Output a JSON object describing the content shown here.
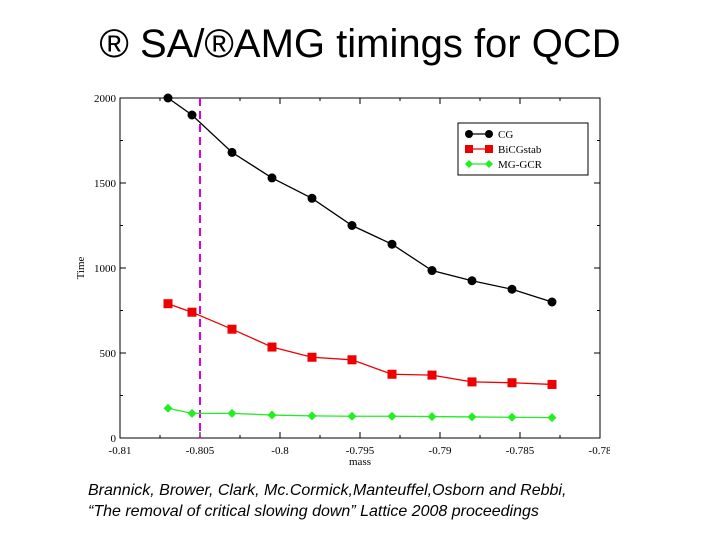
{
  "slide": {
    "title": "® SA/®AMG timings  for QCD"
  },
  "caption": {
    "line1": "Brannick, Brower, Clark, Mc.Cormick,Manteuffel,Osborn and Rebbi,",
    "line2": "“The removal of critical slowing down” Lattice 2008 proceedings"
  },
  "chart_data": {
    "type": "line",
    "title": "",
    "xlabel": "mass",
    "ylabel": "Time",
    "xlim": [
      -0.81,
      -0.78
    ],
    "ylim": [
      0,
      2000
    ],
    "xticks": [
      -0.81,
      -0.805,
      -0.8,
      -0.795,
      -0.79,
      -0.785,
      -0.78
    ],
    "xtick_labels": [
      "-0.81",
      "-0.805",
      "-0.8",
      "-0.795",
      "-0.79",
      "-0.785",
      "-0.78"
    ],
    "yticks": [
      0,
      500,
      1000,
      1500,
      2000
    ],
    "ytick_labels": [
      "0",
      "500",
      "1000",
      "1500",
      "2000"
    ],
    "grid": false,
    "legend_position": "top-right",
    "vertical_line": {
      "x": -0.805,
      "color": "#dd00dd",
      "style": "dashed"
    },
    "x": [
      -0.807,
      -0.8055,
      -0.803,
      -0.8005,
      -0.798,
      -0.7955,
      -0.793,
      -0.7905,
      -0.788,
      -0.7855,
      -0.783
    ],
    "series": [
      {
        "name": "CG",
        "color": "#000000",
        "marker": "circle",
        "values": [
          2000,
          1900,
          1680,
          1530,
          1410,
          1250,
          1140,
          985,
          925,
          875,
          800
        ]
      },
      {
        "name": "BiCGstab",
        "color": "#ee0000",
        "marker": "square",
        "values": [
          790,
          740,
          640,
          535,
          475,
          460,
          375,
          370,
          330,
          325,
          315
        ]
      },
      {
        "name": "MG-GCR",
        "color": "#22ee22",
        "marker": "diamond",
        "values": [
          175,
          145,
          145,
          135,
          130,
          128,
          128,
          126,
          124,
          122,
          120
        ]
      }
    ]
  }
}
